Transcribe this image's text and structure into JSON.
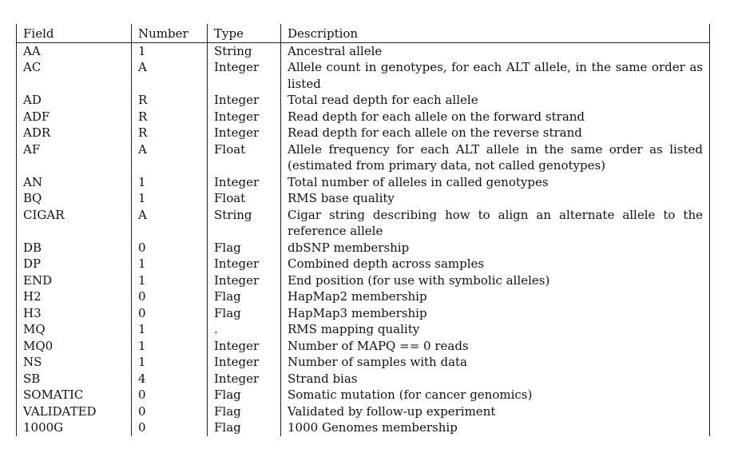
{
  "table": {
    "headers": {
      "field": "Field",
      "number": "Number",
      "type": "Type",
      "description": "Description"
    },
    "rows": [
      {
        "field": "AA",
        "number": "1",
        "type": "String",
        "description": "Ancestral allele"
      },
      {
        "field": "AC",
        "number": "A",
        "type": "Integer",
        "description": "Allele count in genotypes, for each ALT allele, in the same order as listed"
      },
      {
        "field": "AD",
        "number": "R",
        "type": "Integer",
        "description": "Total read depth for each allele"
      },
      {
        "field": "ADF",
        "number": "R",
        "type": "Integer",
        "description": "Read depth for each allele on the forward strand"
      },
      {
        "field": "ADR",
        "number": "R",
        "type": "Integer",
        "description": "Read depth for each allele on the reverse strand"
      },
      {
        "field": "AF",
        "number": "A",
        "type": "Float",
        "description": "Allele frequency for each ALT allele in the same order as listed (esti­mated from primary data, not called genotypes)"
      },
      {
        "field": "AN",
        "number": "1",
        "type": "Integer",
        "description": "Total number of alleles in called genotypes"
      },
      {
        "field": "BQ",
        "number": "1",
        "type": "Float",
        "description": "RMS base quality"
      },
      {
        "field": "CIGAR",
        "number": "A",
        "type": "String",
        "description": "Cigar string describing how to align an alternate allele to the reference allele"
      },
      {
        "field": "DB",
        "number": "0",
        "type": "Flag",
        "description": "dbSNP membership"
      },
      {
        "field": "DP",
        "number": "1",
        "type": "Integer",
        "description": "Combined depth across samples"
      },
      {
        "field": "END",
        "number": "1",
        "type": "Integer",
        "description": "End position (for use with symbolic alleles)"
      },
      {
        "field": "H2",
        "number": "0",
        "type": "Flag",
        "description": "HapMap2 membership"
      },
      {
        "field": "H3",
        "number": "0",
        "type": "Flag",
        "description": "HapMap3 membership"
      },
      {
        "field": "MQ",
        "number": "1",
        "type": ".",
        "description": "RMS mapping quality"
      },
      {
        "field": "MQ0",
        "number": "1",
        "type": "Integer",
        "description": "Number of MAPQ == 0 reads"
      },
      {
        "field": "NS",
        "number": "1",
        "type": "Integer",
        "description": "Number of samples with data"
      },
      {
        "field": "SB",
        "number": "4",
        "type": "Integer",
        "description": "Strand bias"
      },
      {
        "field": "SOMATIC",
        "number": "0",
        "type": "Flag",
        "description": "Somatic mutation (for cancer genomics)"
      },
      {
        "field": "VALIDATED",
        "number": "0",
        "type": "Flag",
        "description": "Validated by follow-up experiment"
      },
      {
        "field": "1000G",
        "number": "0",
        "type": "Flag",
        "description": "1000 Genomes membership"
      }
    ]
  }
}
